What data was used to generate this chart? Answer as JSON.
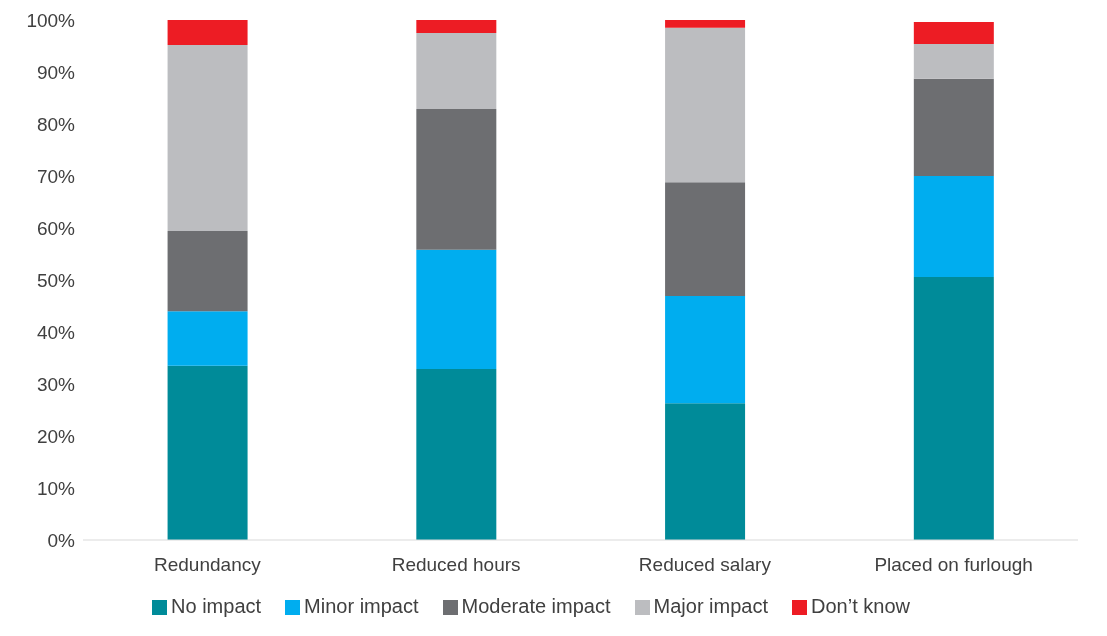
{
  "chart_data": {
    "type": "bar",
    "stacked": true,
    "categories": [
      "Redundancy",
      "Reduced hours",
      "Reduced salary",
      "Placed on furlough"
    ],
    "series": [
      {
        "name": "No impact",
        "color": "#008b99",
        "values": [
          33.5,
          32.9,
          26.3,
          50.6
        ]
      },
      {
        "name": "Minor impact",
        "color": "#00adef",
        "values": [
          10.5,
          22.9,
          20.6,
          19.4
        ]
      },
      {
        "name": "Moderate impact",
        "color": "#6d6e71",
        "values": [
          15.4,
          27.1,
          21.9,
          18.7
        ]
      },
      {
        "name": "Major impact",
        "color": "#bcbdc0",
        "values": [
          35.8,
          14.6,
          29.7,
          6.7
        ]
      },
      {
        "name": "Don’t know",
        "color": "#ed1c24",
        "values": [
          4.8,
          2.5,
          1.5,
          4.2
        ]
      }
    ],
    "ylim": [
      0,
      100
    ],
    "yticks": [
      {
        "value": 0,
        "label": "0%"
      },
      {
        "value": 10,
        "label": "10%"
      },
      {
        "value": 20,
        "label": "20%"
      },
      {
        "value": 30,
        "label": "30%"
      },
      {
        "value": 40,
        "label": "40%"
      },
      {
        "value": 50,
        "label": "50%"
      },
      {
        "value": 60,
        "label": "60%"
      },
      {
        "value": 70,
        "label": "70%"
      },
      {
        "value": 80,
        "label": "80%"
      },
      {
        "value": 90,
        "label": "90%"
      },
      {
        "value": 100,
        "label": "100%"
      }
    ],
    "grid": false,
    "legend": "bottom"
  }
}
